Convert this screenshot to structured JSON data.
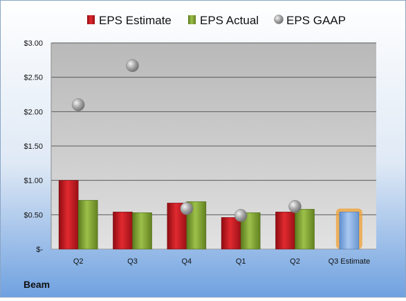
{
  "chart_data": {
    "type": "bar",
    "categories": [
      "Q2",
      "Q3",
      "Q4",
      "Q1",
      "Q2",
      "Q3 Estimate"
    ],
    "series": [
      {
        "name": "EPS Estimate",
        "values": [
          1.0,
          0.54,
          0.67,
          0.46,
          0.54,
          null
        ]
      },
      {
        "name": "EPS Actual",
        "values": [
          0.71,
          0.53,
          0.69,
          0.53,
          0.58,
          null
        ]
      },
      {
        "name": "EPS GAAP",
        "type": "scatter",
        "values": [
          2.1,
          2.67,
          0.59,
          0.49,
          0.62,
          null
        ]
      }
    ],
    "next_estimate": {
      "category": "Q3 Estimate",
      "value": 0.54
    },
    "y_ticks": [
      "$-",
      "$0.50",
      "$1.00",
      "$1.50",
      "$2.00",
      "$2.50",
      "$3.00"
    ],
    "ylim": [
      0,
      3.0
    ],
    "legend_position": "top",
    "grid": true,
    "footer_label": "Beam",
    "colors": {
      "estimate": "#c0141c",
      "actual": "#7b9b2e",
      "gaap": "#9a9a9a",
      "next_estimate_fill": "#7aa6db",
      "next_estimate_glow": "#f0a030"
    }
  }
}
